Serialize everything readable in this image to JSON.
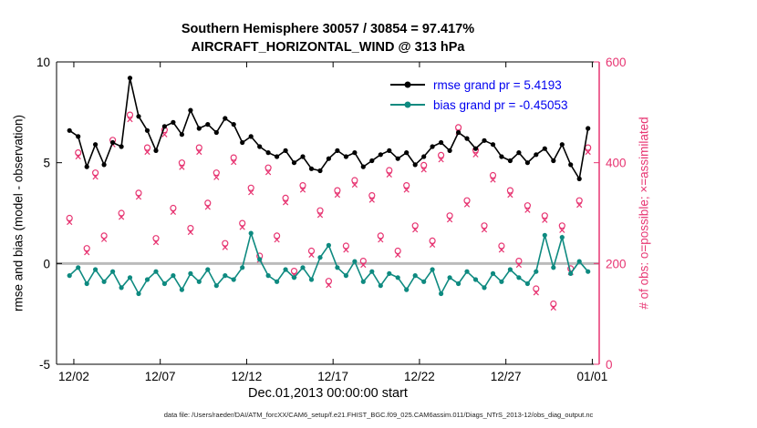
{
  "title": {
    "line1": "Southern Hemisphere 30057 / 30854 = 97.417%",
    "line2": "AIRCRAFT_HORIZONTAL_WIND @ 313 hPa"
  },
  "legend": {
    "text_color": "#0000f0",
    "items": [
      {
        "label": "rmse grand pr = 5.4193",
        "color": "#000000"
      },
      {
        "label": "bias grand pr = -0.45053",
        "color": "#0e8a80"
      }
    ]
  },
  "footer": {
    "text": "data file: /Users/raeder/DAI/ATM_forcXX/CAM6_setup/f.e21.FHIST_BGC.f09_025.CAM6assim.011/Diags_NTrS_2013-12/obs_diag_output.nc"
  },
  "chart_data": {
    "type": "line",
    "title": "Southern Hemisphere 30057 / 30854 = 97.417% — AIRCRAFT_HORIZONTAL_WIND @ 313 hPa",
    "x_label": "Dec.01,2013 00:00:00 start",
    "y_left": {
      "label": "rmse and bias (model - observation)",
      "range": [
        -5,
        10
      ],
      "ticks": [
        -5,
        0,
        5,
        10
      ],
      "color": "#000000"
    },
    "y_right": {
      "label": "# of obs: o=possible; ×=assimilated",
      "range": [
        0,
        600
      ],
      "ticks": [
        0,
        200,
        400,
        600
      ],
      "color": "#e73572"
    },
    "x_axis": {
      "range_days": [
        0,
        31.4
      ],
      "tick_days": [
        1,
        6,
        11,
        16,
        21,
        26,
        31
      ],
      "tick_labels": [
        "12/02",
        "12/07",
        "12/12",
        "12/17",
        "12/22",
        "12/27",
        "01/01"
      ]
    },
    "x_start": 0.75,
    "x_step": 0.5,
    "zero_line": {
      "y": 0,
      "color": "#bbbbbb"
    },
    "series": [
      {
        "name": "obs-possible",
        "axis": "right",
        "marker": "o",
        "color": "#e73572",
        "values": [
          290,
          420,
          230,
          380,
          255,
          445,
          300,
          495,
          340,
          430,
          250,
          465,
          310,
          400,
          270,
          430,
          320,
          380,
          240,
          410,
          280,
          350,
          215,
          390,
          255,
          330,
          185,
          355,
          225,
          305,
          165,
          345,
          235,
          365,
          205,
          335,
          255,
          385,
          225,
          355,
          275,
          395,
          245,
          415,
          295,
          470,
          325,
          425,
          275,
          375,
          235,
          345,
          205,
          315,
          150,
          295,
          120,
          275,
          190,
          325,
          430
        ]
      },
      {
        "name": "obs-assimilated",
        "axis": "right",
        "marker": "x",
        "color": "#e73572",
        "values": [
          282,
          412,
          222,
          372,
          248,
          436,
          292,
          486,
          332,
          421,
          242,
          456,
          302,
          391,
          262,
          421,
          312,
          371,
          232,
          401,
          272,
          341,
          207,
          381,
          247,
          321,
          177,
          346,
          217,
          296,
          157,
          336,
          227,
          356,
          197,
          326,
          247,
          376,
          217,
          346,
          267,
          386,
          237,
          406,
          287,
          461,
          317,
          416,
          267,
          366,
          227,
          336,
          197,
          306,
          142,
          286,
          112,
          266,
          182,
          316,
          421
        ]
      },
      {
        "name": "rmse",
        "axis": "left",
        "marker": "dot",
        "color": "#000000",
        "values": [
          6.6,
          6.3,
          4.8,
          5.9,
          4.9,
          6.0,
          5.8,
          9.2,
          7.3,
          6.6,
          5.6,
          6.8,
          7.0,
          6.4,
          7.6,
          6.7,
          6.9,
          6.5,
          7.2,
          6.9,
          6.0,
          6.3,
          5.8,
          5.5,
          5.3,
          5.6,
          5.0,
          5.3,
          4.7,
          4.6,
          5.2,
          5.6,
          5.3,
          5.5,
          4.8,
          5.1,
          5.4,
          5.6,
          5.2,
          5.5,
          4.9,
          5.3,
          5.8,
          6.0,
          5.6,
          6.5,
          6.2,
          5.7,
          6.1,
          5.9,
          5.3,
          5.1,
          5.5,
          5.0,
          5.4,
          5.7,
          5.1,
          5.9,
          4.9,
          4.2,
          6.7
        ]
      },
      {
        "name": "bias",
        "axis": "left",
        "marker": "dot",
        "color": "#0e8a80",
        "values": [
          -0.6,
          -0.2,
          -1.0,
          -0.3,
          -0.9,
          -0.4,
          -1.2,
          -0.7,
          -1.5,
          -0.8,
          -0.4,
          -1.0,
          -0.6,
          -1.3,
          -0.5,
          -0.9,
          -0.3,
          -1.1,
          -0.6,
          -0.8,
          -0.2,
          1.5,
          0.2,
          -0.6,
          -0.9,
          -0.3,
          -0.7,
          -0.2,
          -0.8,
          0.3,
          0.9,
          -0.2,
          -0.6,
          0.1,
          -0.9,
          -0.4,
          -1.1,
          -0.5,
          -0.7,
          -1.3,
          -0.6,
          -0.9,
          -0.3,
          -1.5,
          -0.7,
          -1.0,
          -0.4,
          -0.8,
          -1.2,
          -0.5,
          -0.9,
          -0.3,
          -0.7,
          -1.0,
          -0.4,
          1.4,
          -0.2,
          1.3,
          -0.5,
          0.1,
          -0.4
        ]
      }
    ]
  }
}
